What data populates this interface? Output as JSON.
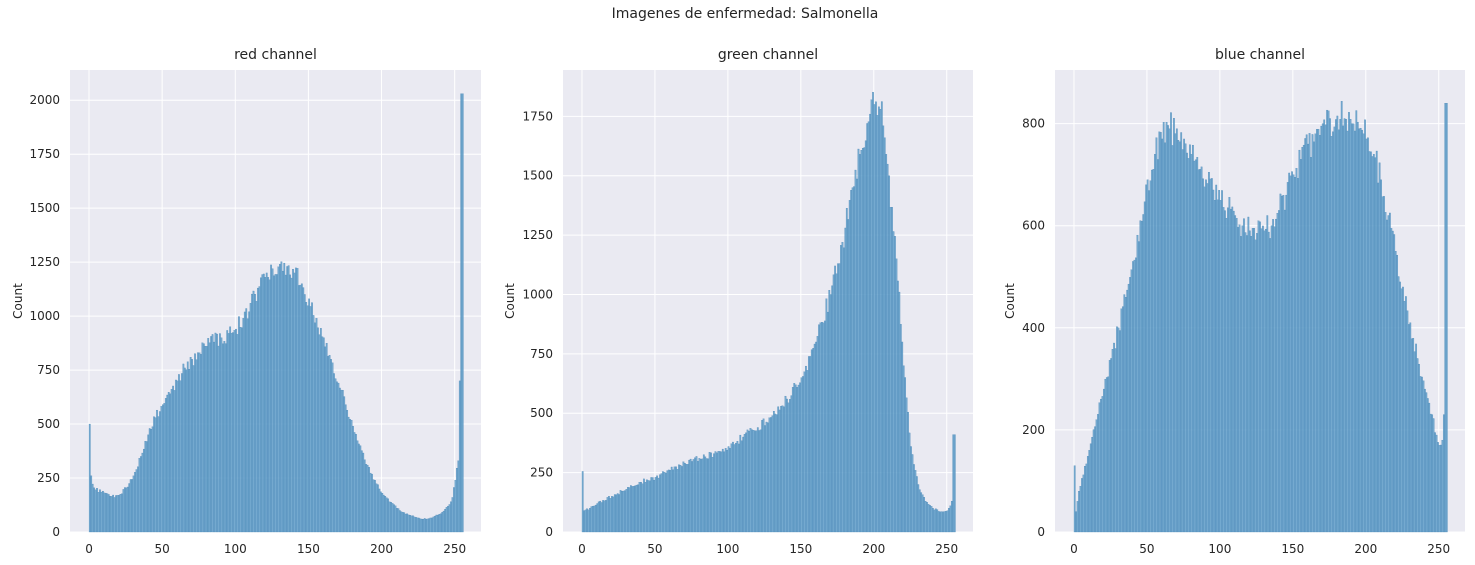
{
  "figure": {
    "suptitle": "Imagenes de enfermedad: Salmonella"
  },
  "style": {
    "plot_bg": "#eaeaf2",
    "grid": "#ffffff",
    "bar_fill": "#5f9ec9",
    "bar_edge": "#3f7fb0"
  },
  "chart_data": [
    {
      "type": "bar",
      "title": "red channel",
      "xlabel": "",
      "ylabel": "Count",
      "xlim": [
        -13,
        268
      ],
      "ylim": [
        0,
        2140
      ],
      "xticks": [
        0,
        50,
        100,
        150,
        200,
        250
      ],
      "yticks": [
        0,
        250,
        500,
        750,
        1000,
        1250,
        1500,
        1750,
        2000
      ],
      "bins": 256,
      "anchors": [
        [
          0,
          500
        ],
        [
          1,
          260
        ],
        [
          3,
          205
        ],
        [
          8,
          185
        ],
        [
          15,
          165
        ],
        [
          20,
          170
        ],
        [
          25,
          205
        ],
        [
          30,
          260
        ],
        [
          35,
          350
        ],
        [
          40,
          450
        ],
        [
          45,
          530
        ],
        [
          50,
          590
        ],
        [
          55,
          640
        ],
        [
          60,
          700
        ],
        [
          65,
          760
        ],
        [
          70,
          800
        ],
        [
          75,
          830
        ],
        [
          80,
          860
        ],
        [
          85,
          880
        ],
        [
          90,
          900
        ],
        [
          95,
          920
        ],
        [
          100,
          940
        ],
        [
          105,
          990
        ],
        [
          110,
          1060
        ],
        [
          115,
          1130
        ],
        [
          120,
          1180
        ],
        [
          125,
          1220
        ],
        [
          130,
          1240
        ],
        [
          135,
          1230
        ],
        [
          140,
          1200
        ],
        [
          145,
          1150
        ],
        [
          150,
          1080
        ],
        [
          155,
          990
        ],
        [
          160,
          900
        ],
        [
          165,
          800
        ],
        [
          170,
          690
        ],
        [
          175,
          590
        ],
        [
          180,
          490
        ],
        [
          185,
          400
        ],
        [
          190,
          310
        ],
        [
          195,
          240
        ],
        [
          200,
          180
        ],
        [
          205,
          140
        ],
        [
          210,
          110
        ],
        [
          215,
          90
        ],
        [
          220,
          75
        ],
        [
          225,
          65
        ],
        [
          230,
          60
        ],
        [
          235,
          70
        ],
        [
          240,
          85
        ],
        [
          245,
          120
        ],
        [
          248,
          160
        ],
        [
          250,
          240
        ],
        [
          252,
          330
        ],
        [
          253,
          700
        ],
        [
          254,
          2030
        ],
        [
          255,
          2030
        ]
      ],
      "grid": true,
      "legend": "none"
    },
    {
      "type": "bar",
      "title": "green channel",
      "xlabel": "",
      "ylabel": "Count",
      "xlim": [
        -13,
        268
      ],
      "ylim": [
        0,
        1945
      ],
      "xticks": [
        0,
        50,
        100,
        150,
        200,
        250
      ],
      "yticks": [
        0,
        250,
        500,
        750,
        1000,
        1250,
        1500,
        1750
      ],
      "bins": 256,
      "anchors": [
        [
          0,
          255
        ],
        [
          1,
          90
        ],
        [
          5,
          100
        ],
        [
          10,
          120
        ],
        [
          20,
          150
        ],
        [
          30,
          180
        ],
        [
          40,
          210
        ],
        [
          50,
          230
        ],
        [
          60,
          260
        ],
        [
          70,
          290
        ],
        [
          80,
          310
        ],
        [
          90,
          330
        ],
        [
          100,
          360
        ],
        [
          110,
          400
        ],
        [
          120,
          440
        ],
        [
          130,
          490
        ],
        [
          140,
          560
        ],
        [
          150,
          650
        ],
        [
          160,
          800
        ],
        [
          170,
          1000
        ],
        [
          175,
          1130
        ],
        [
          180,
          1280
        ],
        [
          185,
          1450
        ],
        [
          190,
          1590
        ],
        [
          195,
          1720
        ],
        [
          200,
          1800
        ],
        [
          203,
          1790
        ],
        [
          206,
          1710
        ],
        [
          210,
          1500
        ],
        [
          215,
          1150
        ],
        [
          220,
          700
        ],
        [
          225,
          360
        ],
        [
          230,
          200
        ],
        [
          235,
          130
        ],
        [
          240,
          100
        ],
        [
          245,
          85
        ],
        [
          250,
          90
        ],
        [
          252,
          110
        ],
        [
          253,
          130
        ],
        [
          254,
          410
        ],
        [
          255,
          410
        ]
      ],
      "grid": true,
      "legend": "none"
    },
    {
      "type": "bar",
      "title": "blue channel",
      "xlabel": "",
      "ylabel": "Count",
      "xlim": [
        -13,
        268
      ],
      "ylim": [
        0,
        905
      ],
      "xticks": [
        0,
        50,
        100,
        150,
        200,
        250
      ],
      "yticks": [
        0,
        200,
        400,
        600,
        800
      ],
      "bins": 256,
      "anchors": [
        [
          0,
          130
        ],
        [
          1,
          40
        ],
        [
          3,
          80
        ],
        [
          5,
          105
        ],
        [
          10,
          160
        ],
        [
          15,
          220
        ],
        [
          20,
          280
        ],
        [
          25,
          340
        ],
        [
          30,
          400
        ],
        [
          35,
          460
        ],
        [
          40,
          530
        ],
        [
          45,
          610
        ],
        [
          50,
          690
        ],
        [
          55,
          740
        ],
        [
          60,
          770
        ],
        [
          65,
          790
        ],
        [
          70,
          790
        ],
        [
          75,
          770
        ],
        [
          80,
          740
        ],
        [
          85,
          710
        ],
        [
          90,
          690
        ],
        [
          95,
          670
        ],
        [
          100,
          650
        ],
        [
          105,
          635
        ],
        [
          110,
          620
        ],
        [
          115,
          600
        ],
        [
          120,
          590
        ],
        [
          125,
          585
        ],
        [
          130,
          590
        ],
        [
          135,
          600
        ],
        [
          140,
          630
        ],
        [
          145,
          660
        ],
        [
          150,
          700
        ],
        [
          155,
          730
        ],
        [
          160,
          760
        ],
        [
          165,
          780
        ],
        [
          170,
          800
        ],
        [
          175,
          810
        ],
        [
          180,
          815
        ],
        [
          185,
          810
        ],
        [
          190,
          800
        ],
        [
          195,
          790
        ],
        [
          200,
          770
        ],
        [
          205,
          740
        ],
        [
          210,
          690
        ],
        [
          215,
          620
        ],
        [
          220,
          550
        ],
        [
          225,
          480
        ],
        [
          230,
          410
        ],
        [
          235,
          340
        ],
        [
          240,
          280
        ],
        [
          245,
          230
        ],
        [
          248,
          190
        ],
        [
          250,
          170
        ],
        [
          252,
          180
        ],
        [
          253,
          230
        ],
        [
          254,
          840
        ],
        [
          255,
          840
        ]
      ],
      "grid": true,
      "legend": "none"
    }
  ]
}
